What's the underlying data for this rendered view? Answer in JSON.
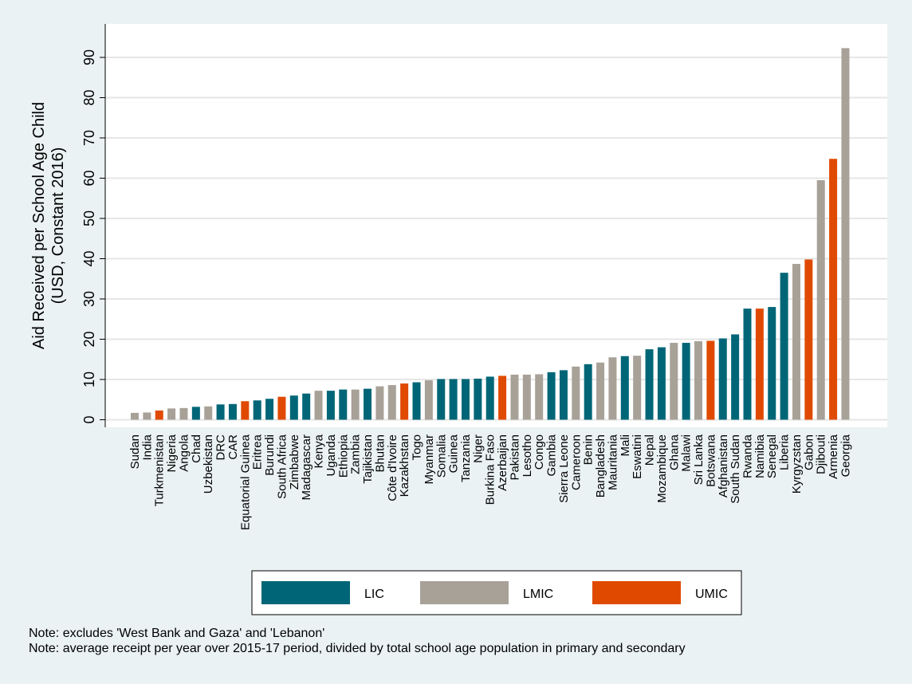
{
  "chart_data": {
    "type": "bar",
    "ylabel_line1": "Aid Received per School Age Child",
    "ylabel_line2": "(USD, Constant 2016)",
    "ylim": [
      0,
      98
    ],
    "yticks": [
      0,
      10,
      20,
      30,
      40,
      50,
      60,
      70,
      80,
      90
    ],
    "grid": true,
    "legend_position": "bottom",
    "legend": [
      {
        "name": "LIC",
        "color": "#006677"
      },
      {
        "name": "LMIC",
        "color": "#a8a198"
      },
      {
        "name": "UMIC",
        "color": "#e04a00"
      }
    ],
    "categories": [
      "Sudan",
      "India",
      "Turkmenistan",
      "Nigeria",
      "Angola",
      "Chad",
      "Uzbekistan",
      "DRC",
      "CAR",
      "Equatorial Guinea",
      "Eritrea",
      "Burundi",
      "South Africa",
      "Zimbabwe",
      "Madagascar",
      "Kenya",
      "Uganda",
      "Ethiopia",
      "Zambia",
      "Tajikistan",
      "Bhutan",
      "Côte d'Ivoire",
      "Kazakhstan",
      "Togo",
      "Myanmar",
      "Somalia",
      "Guinea",
      "Tanzania",
      "Niger",
      "Burkina Faso",
      "Azerbaijan",
      "Pakistan",
      "Lesotho",
      "Congo",
      "Gambia",
      "Sierra Leone",
      "Cameroon",
      "Benin",
      "Bangladesh",
      "Mauritania",
      "Mali",
      "Eswatini",
      "Nepal",
      "Mozambique",
      "Ghana",
      "Malawi",
      "Sri Lanka",
      "Botswana",
      "Afghanistan",
      "South Sudan",
      "Rwanda",
      "Namibia",
      "Senegal",
      "Liberia",
      "Kyrgyzstan",
      "Gabon",
      "Djibouti",
      "Armenia",
      "Georgia"
    ],
    "values": [
      1.7,
      1.8,
      2.3,
      2.8,
      2.9,
      3.2,
      3.3,
      3.8,
      3.9,
      4.6,
      4.8,
      5.2,
      5.7,
      6.0,
      6.5,
      7.2,
      7.2,
      7.5,
      7.5,
      7.7,
      8.3,
      8.6,
      9.0,
      9.3,
      9.8,
      10.1,
      10.1,
      10.1,
      10.2,
      10.7,
      10.9,
      11.2,
      11.2,
      11.3,
      11.8,
      12.3,
      13.2,
      13.8,
      14.2,
      15.5,
      15.8,
      15.9,
      17.5,
      18.0,
      19.1,
      19.1,
      19.5,
      19.6,
      20.2,
      21.2,
      27.6,
      27.6,
      28.0,
      36.5,
      38.7,
      39.8,
      59.5,
      64.8,
      92.3
    ],
    "groups": [
      "LMIC",
      "LMIC",
      "UMIC",
      "LMIC",
      "LMIC",
      "LIC",
      "LMIC",
      "LIC",
      "LIC",
      "UMIC",
      "LIC",
      "LIC",
      "UMIC",
      "LIC",
      "LIC",
      "LMIC",
      "LIC",
      "LIC",
      "LMIC",
      "LIC",
      "LMIC",
      "LMIC",
      "UMIC",
      "LIC",
      "LMIC",
      "LIC",
      "LIC",
      "LIC",
      "LIC",
      "LIC",
      "UMIC",
      "LMIC",
      "LMIC",
      "LMIC",
      "LIC",
      "LIC",
      "LMIC",
      "LIC",
      "LMIC",
      "LMIC",
      "LIC",
      "LMIC",
      "LIC",
      "LIC",
      "LMIC",
      "LIC",
      "LMIC",
      "UMIC",
      "LIC",
      "LIC",
      "LIC",
      "UMIC",
      "LIC",
      "LIC",
      "LMIC",
      "UMIC",
      "LMIC",
      "UMIC",
      "LMIC"
    ]
  },
  "notes": [
    "Note: excludes 'West Bank and Gaza' and 'Lebanon'",
    "Note: average receipt per year over 2015-17 period, divided by total school age population in primary and secondary"
  ]
}
